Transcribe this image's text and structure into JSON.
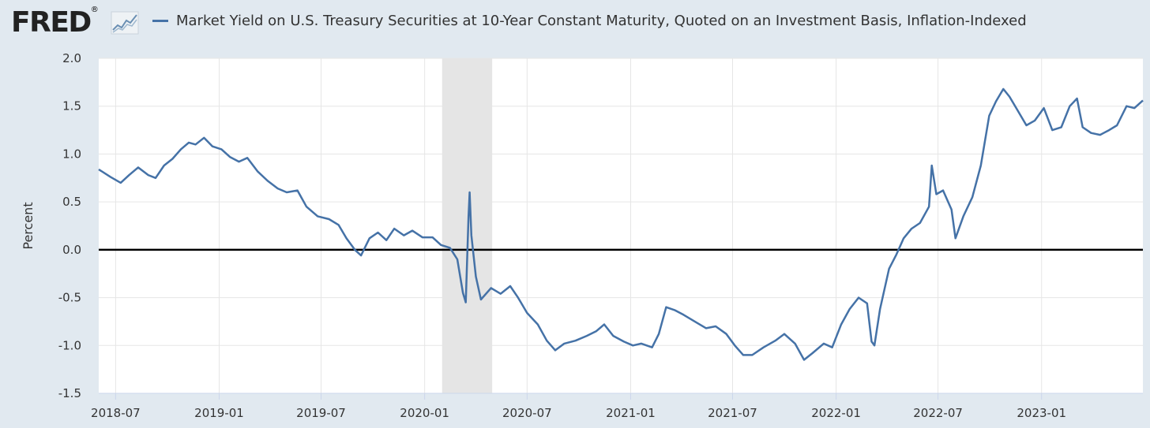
{
  "header": {
    "logo_text": "FRED",
    "logo_mark": "®",
    "logo_icon": "fred-graph-icon"
  },
  "colors": {
    "background": "#e1e9f0",
    "plot_background": "#ffffff",
    "series": "#4572a7",
    "grid": "#e6e6e6",
    "recession": "#e5e5e5",
    "zero_line": "#000000"
  },
  "chart_data": {
    "type": "line",
    "title": "",
    "legend_position": "top",
    "ylabel": "Percent",
    "xlabel": "",
    "ylim": [
      -1.5,
      2.0
    ],
    "yticks": [
      -1.5,
      -1.0,
      -0.5,
      0.0,
      0.5,
      1.0,
      1.5,
      2.0
    ],
    "ytick_labels": [
      "-1.5",
      "-1.0",
      "-0.5",
      "0.0",
      "0.5",
      "1.0",
      "1.5",
      "2.0"
    ],
    "xlim": [
      "2018-06-01",
      "2023-06-30"
    ],
    "xticks": [
      "2018-07-01",
      "2019-01-01",
      "2019-07-01",
      "2020-01-01",
      "2020-07-01",
      "2021-01-01",
      "2021-07-01",
      "2022-01-01",
      "2022-07-01",
      "2023-01-01"
    ],
    "xtick_labels": [
      "2018-07",
      "2019-01",
      "2019-07",
      "2020-01",
      "2020-07",
      "2021-01",
      "2021-07",
      "2022-01",
      "2022-07",
      "2023-01"
    ],
    "grid": true,
    "recession_shading": [
      {
        "start": "2020-02-01",
        "end": "2020-04-30"
      }
    ],
    "series": [
      {
        "name": "Market Yield on U.S. Treasury Securities at 10-Year Constant Maturity, Quoted on an Investment Basis, Inflation-Indexed",
        "color": "#4572a7",
        "points": [
          [
            "2018-06-01",
            0.84
          ],
          [
            "2018-06-22",
            0.76
          ],
          [
            "2018-07-10",
            0.7
          ],
          [
            "2018-07-25",
            0.78
          ],
          [
            "2018-08-10",
            0.86
          ],
          [
            "2018-08-28",
            0.78
          ],
          [
            "2018-09-10",
            0.75
          ],
          [
            "2018-09-25",
            0.88
          ],
          [
            "2018-10-10",
            0.95
          ],
          [
            "2018-10-25",
            1.05
          ],
          [
            "2018-11-08",
            1.12
          ],
          [
            "2018-11-20",
            1.1
          ],
          [
            "2018-12-05",
            1.17
          ],
          [
            "2018-12-20",
            1.08
          ],
          [
            "2019-01-05",
            1.05
          ],
          [
            "2019-01-20",
            0.97
          ],
          [
            "2019-02-05",
            0.92
          ],
          [
            "2019-02-20",
            0.96
          ],
          [
            "2019-03-10",
            0.82
          ],
          [
            "2019-03-28",
            0.72
          ],
          [
            "2019-04-15",
            0.64
          ],
          [
            "2019-05-01",
            0.6
          ],
          [
            "2019-05-20",
            0.62
          ],
          [
            "2019-06-05",
            0.45
          ],
          [
            "2019-06-25",
            0.35
          ],
          [
            "2019-07-15",
            0.32
          ],
          [
            "2019-08-01",
            0.26
          ],
          [
            "2019-08-15",
            0.12
          ],
          [
            "2019-08-30",
            0.0
          ],
          [
            "2019-09-10",
            -0.06
          ],
          [
            "2019-09-25",
            0.12
          ],
          [
            "2019-10-10",
            0.18
          ],
          [
            "2019-10-25",
            0.1
          ],
          [
            "2019-11-08",
            0.22
          ],
          [
            "2019-11-25",
            0.15
          ],
          [
            "2019-12-10",
            0.2
          ],
          [
            "2019-12-28",
            0.13
          ],
          [
            "2020-01-15",
            0.13
          ],
          [
            "2020-01-30",
            0.05
          ],
          [
            "2020-02-15",
            0.02
          ],
          [
            "2020-02-28",
            -0.1
          ],
          [
            "2020-03-09",
            -0.45
          ],
          [
            "2020-03-14",
            -0.55
          ],
          [
            "2020-03-19",
            0.35
          ],
          [
            "2020-03-21",
            0.6
          ],
          [
            "2020-03-24",
            0.15
          ],
          [
            "2020-04-01",
            -0.28
          ],
          [
            "2020-04-10",
            -0.52
          ],
          [
            "2020-04-28",
            -0.4
          ],
          [
            "2020-05-15",
            -0.46
          ],
          [
            "2020-06-01",
            -0.38
          ],
          [
            "2020-06-15",
            -0.5
          ],
          [
            "2020-07-01",
            -0.66
          ],
          [
            "2020-07-20",
            -0.78
          ],
          [
            "2020-08-05",
            -0.95
          ],
          [
            "2020-08-20",
            -1.05
          ],
          [
            "2020-09-05",
            -0.98
          ],
          [
            "2020-09-25",
            -0.95
          ],
          [
            "2020-10-15",
            -0.9
          ],
          [
            "2020-11-01",
            -0.85
          ],
          [
            "2020-11-15",
            -0.78
          ],
          [
            "2020-12-01",
            -0.9
          ],
          [
            "2020-12-20",
            -0.96
          ],
          [
            "2021-01-05",
            -1.0
          ],
          [
            "2021-01-20",
            -0.98
          ],
          [
            "2021-02-08",
            -1.02
          ],
          [
            "2021-02-20",
            -0.88
          ],
          [
            "2021-03-05",
            -0.6
          ],
          [
            "2021-03-20",
            -0.63
          ],
          [
            "2021-04-05",
            -0.68
          ],
          [
            "2021-04-25",
            -0.75
          ],
          [
            "2021-05-15",
            -0.82
          ],
          [
            "2021-06-01",
            -0.8
          ],
          [
            "2021-06-20",
            -0.88
          ],
          [
            "2021-07-05",
            -1.0
          ],
          [
            "2021-07-20",
            -1.1
          ],
          [
            "2021-08-05",
            -1.1
          ],
          [
            "2021-08-25",
            -1.02
          ],
          [
            "2021-09-15",
            -0.95
          ],
          [
            "2021-10-01",
            -0.88
          ],
          [
            "2021-10-20",
            -0.98
          ],
          [
            "2021-11-05",
            -1.15
          ],
          [
            "2021-11-20",
            -1.08
          ],
          [
            "2021-12-10",
            -0.98
          ],
          [
            "2021-12-25",
            -1.02
          ],
          [
            "2022-01-10",
            -0.78
          ],
          [
            "2022-01-25",
            -0.62
          ],
          [
            "2022-02-10",
            -0.5
          ],
          [
            "2022-02-25",
            -0.56
          ],
          [
            "2022-03-05",
            -0.96
          ],
          [
            "2022-03-10",
            -1.0
          ],
          [
            "2022-03-20",
            -0.62
          ],
          [
            "2022-04-05",
            -0.2
          ],
          [
            "2022-04-18",
            -0.05
          ],
          [
            "2022-05-01",
            0.12
          ],
          [
            "2022-05-15",
            0.22
          ],
          [
            "2022-05-30",
            0.28
          ],
          [
            "2022-06-15",
            0.45
          ],
          [
            "2022-06-20",
            0.88
          ],
          [
            "2022-06-28",
            0.58
          ],
          [
            "2022-07-10",
            0.62
          ],
          [
            "2022-07-25",
            0.42
          ],
          [
            "2022-08-01",
            0.12
          ],
          [
            "2022-08-15",
            0.35
          ],
          [
            "2022-08-31",
            0.55
          ],
          [
            "2022-09-15",
            0.88
          ],
          [
            "2022-09-30",
            1.4
          ],
          [
            "2022-10-12",
            1.55
          ],
          [
            "2022-10-25",
            1.68
          ],
          [
            "2022-11-05",
            1.6
          ],
          [
            "2022-11-20",
            1.45
          ],
          [
            "2022-12-05",
            1.3
          ],
          [
            "2022-12-20",
            1.35
          ],
          [
            "2023-01-05",
            1.48
          ],
          [
            "2023-01-20",
            1.25
          ],
          [
            "2023-02-05",
            1.28
          ],
          [
            "2023-02-20",
            1.5
          ],
          [
            "2023-03-05",
            1.58
          ],
          [
            "2023-03-15",
            1.28
          ],
          [
            "2023-03-30",
            1.22
          ],
          [
            "2023-04-15",
            1.2
          ],
          [
            "2023-05-01",
            1.25
          ],
          [
            "2023-05-15",
            1.3
          ],
          [
            "2023-06-01",
            1.5
          ],
          [
            "2023-06-15",
            1.48
          ],
          [
            "2023-06-30",
            1.56
          ]
        ]
      }
    ]
  }
}
